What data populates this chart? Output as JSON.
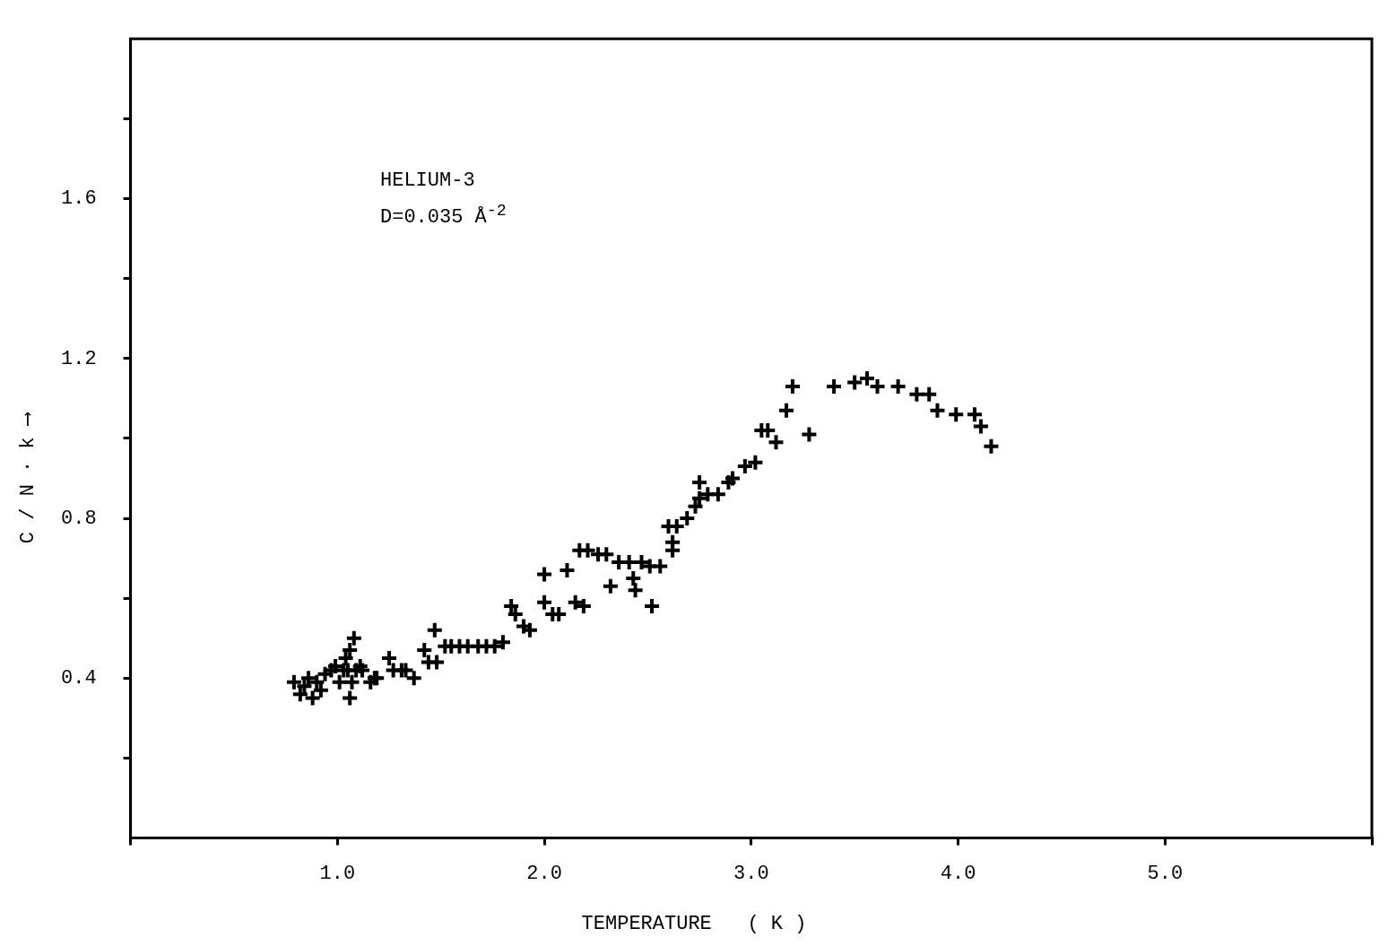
{
  "chart_data": {
    "type": "scatter",
    "xlabel": "TEMPERATURE   ( K )",
    "ylabel": "C / N · k ⟶",
    "annotations": [
      "HELIUM-3",
      "D=0.035 Å$^{-2}$"
    ],
    "xlim": [
      0,
      6
    ],
    "ylim": [
      0,
      2
    ],
    "xticks": [
      {
        "value": 0,
        "label": null
      },
      {
        "value": 1,
        "label": "1.0"
      },
      {
        "value": 2,
        "label": "2.0"
      },
      {
        "value": 3,
        "label": "3.0"
      },
      {
        "value": 4,
        "label": "4.0"
      },
      {
        "value": 5,
        "label": "5.0"
      },
      {
        "value": 6,
        "label": null
      }
    ],
    "yticks": [
      {
        "value": 0.2,
        "label": null
      },
      0.4,
      {
        "value": 0.6,
        "label": null
      },
      0.8,
      {
        "value": 1.0,
        "label": null
      },
      1.2,
      {
        "value": 1.4,
        "label": null
      },
      1.6,
      {
        "value": 1.8,
        "label": null
      }
    ],
    "grid": false,
    "marker": "cross",
    "legend": false,
    "series": [
      {
        "color": "#000000",
        "x": [
          0.79,
          0.82,
          0.84,
          0.86,
          0.88,
          0.9,
          0.92,
          0.94,
          0.97,
          0.99,
          1.01,
          1.03,
          1.04,
          1.05,
          1.06,
          1.07,
          1.09,
          1.08,
          1.11,
          1.12,
          1.06,
          1.16,
          1.18,
          1.19,
          1.25,
          1.27,
          1.31,
          1.33,
          1.37,
          1.42,
          1.44,
          1.47,
          1.48,
          1.52,
          1.55,
          1.59,
          1.63,
          1.68,
          1.72,
          1.76,
          1.8,
          1.84,
          1.86,
          1.9,
          1.93,
          2.0,
          2.04,
          2.0,
          2.07,
          2.11,
          2.15,
          2.19,
          2.17,
          2.21,
          2.26,
          2.3,
          2.32,
          2.36,
          2.41,
          2.43,
          2.47,
          2.44,
          2.51,
          2.56,
          2.52,
          2.6,
          2.62,
          2.64,
          2.69,
          2.73,
          2.75,
          2.75,
          2.79,
          2.84,
          2.89,
          2.91,
          2.97,
          3.02,
          3.05,
          3.08,
          3.12,
          3.17,
          3.2,
          3.28,
          3.4,
          3.5,
          3.56,
          3.61,
          3.71,
          3.8,
          3.86,
          3.9,
          3.99,
          4.08,
          4.11,
          4.16,
          2.62
        ],
        "values": [
          0.39,
          0.36,
          0.38,
          0.4,
          0.35,
          0.39,
          0.37,
          0.41,
          0.42,
          0.43,
          0.39,
          0.42,
          0.45,
          0.42,
          0.47,
          0.39,
          0.42,
          0.5,
          0.43,
          0.42,
          0.35,
          0.39,
          0.4,
          0.4,
          0.45,
          0.42,
          0.42,
          0.42,
          0.4,
          0.47,
          0.44,
          0.52,
          0.44,
          0.48,
          0.48,
          0.48,
          0.48,
          0.48,
          0.48,
          0.48,
          0.49,
          0.58,
          0.56,
          0.53,
          0.52,
          0.59,
          0.56,
          0.66,
          0.56,
          0.67,
          0.59,
          0.58,
          0.72,
          0.72,
          0.71,
          0.71,
          0.63,
          0.69,
          0.69,
          0.65,
          0.69,
          0.62,
          0.68,
          0.68,
          0.58,
          0.78,
          0.74,
          0.78,
          0.8,
          0.83,
          0.85,
          0.89,
          0.86,
          0.86,
          0.89,
          0.9,
          0.93,
          0.94,
          1.02,
          1.02,
          0.99,
          1.07,
          1.13,
          1.01,
          1.13,
          1.14,
          1.15,
          1.13,
          1.13,
          1.11,
          1.11,
          1.07,
          1.06,
          1.06,
          1.03,
          0.98,
          0.72
        ]
      }
    ]
  }
}
